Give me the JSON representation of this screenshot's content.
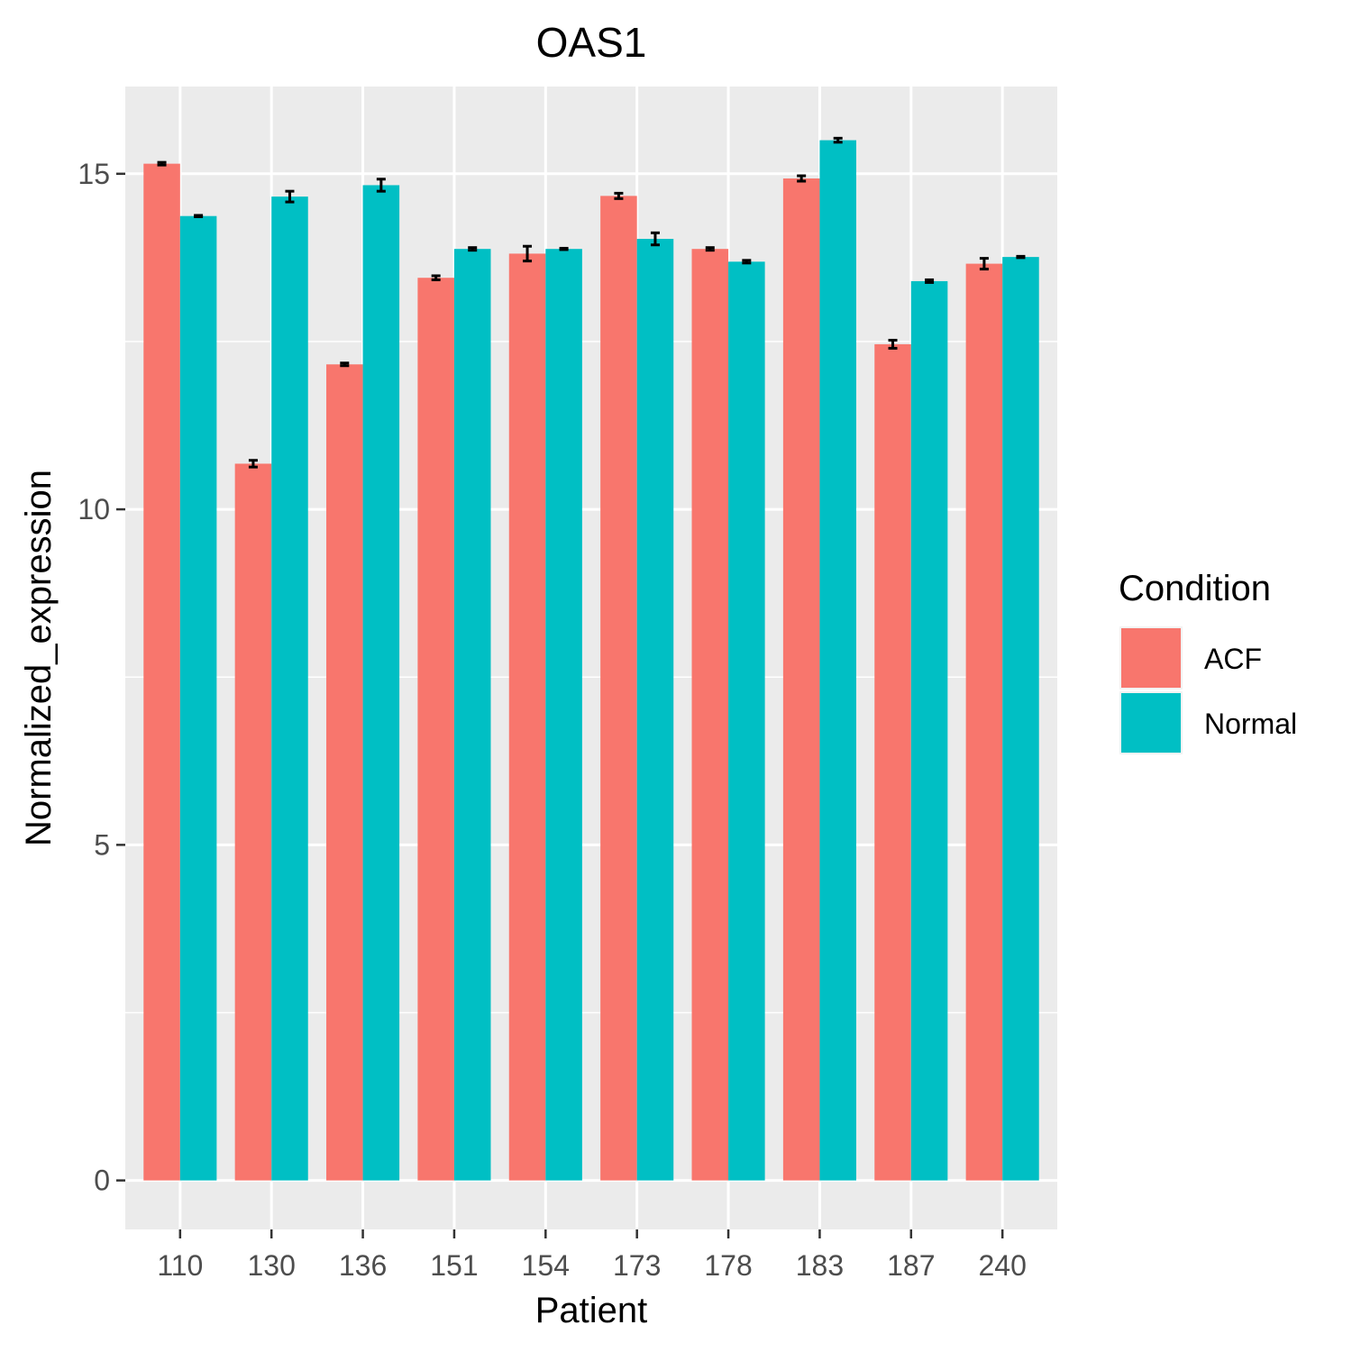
{
  "chart_data": {
    "type": "bar",
    "title": "OAS1",
    "xlabel": "Patient",
    "ylabel": "Normalized_expression",
    "categories": [
      "110",
      "130",
      "136",
      "151",
      "154",
      "173",
      "178",
      "183",
      "187",
      "240"
    ],
    "series": [
      {
        "name": "ACF",
        "color": "#F8766D",
        "values": [
          15.15,
          10.68,
          12.16,
          13.45,
          13.81,
          14.67,
          13.88,
          14.93,
          12.46,
          13.66
        ],
        "errors": [
          0.02,
          0.05,
          0.02,
          0.03,
          0.11,
          0.04,
          0.02,
          0.04,
          0.06,
          0.08
        ]
      },
      {
        "name": "Normal",
        "color": "#00BFC4",
        "values": [
          14.37,
          14.66,
          14.83,
          13.88,
          13.88,
          14.03,
          13.69,
          15.5,
          13.4,
          13.76
        ],
        "errors": [
          0.01,
          0.08,
          0.09,
          0.02,
          0.01,
          0.09,
          0.02,
          0.03,
          0.02,
          0.01
        ]
      }
    ],
    "yticks": [
      0,
      5,
      10,
      15
    ],
    "ylim": [
      -0.73,
      16.3
    ],
    "legend": {
      "title": "Condition",
      "position": "right"
    },
    "grid": true,
    "panel_background": "#EBEBEB",
    "gridline_color": "#FFFFFF"
  }
}
